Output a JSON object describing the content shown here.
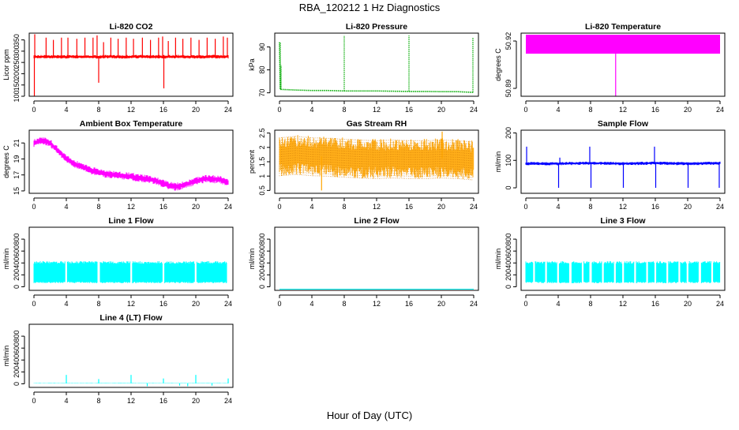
{
  "figure": {
    "title": "RBA_120212  1 Hz Diagnostics",
    "xlabel": "Hour of Day (UTC)"
  },
  "chart_data": [
    {
      "id": "co2",
      "type": "line",
      "title": "Li-820 CO2",
      "ylabel": "Licor ppm",
      "color": "#ff0000",
      "style": "spiky",
      "xlim": [
        0,
        24
      ],
      "xticks": [
        0,
        4,
        8,
        12,
        16,
        20,
        24
      ],
      "ylim": [
        100,
        380
      ],
      "yticks": [
        100,
        150,
        200,
        250,
        300,
        350
      ],
      "x": [
        0,
        1,
        2,
        3,
        4,
        5,
        6,
        7,
        8,
        9,
        10,
        11,
        12,
        13,
        14,
        15,
        16,
        17,
        18,
        19,
        20,
        21,
        22,
        23,
        24
      ],
      "y": [
        275,
        275,
        276,
        275,
        275,
        276,
        275,
        275,
        275,
        276,
        275,
        275,
        275,
        276,
        275,
        275,
        275,
        275,
        276,
        275,
        275,
        275,
        276,
        275,
        275
      ],
      "band": 8,
      "spikes": [
        {
          "x": 0.05,
          "y": 100
        },
        {
          "x": 0.1,
          "y": 375
        },
        {
          "x": 1.5,
          "y": 360
        },
        {
          "x": 2.4,
          "y": 350
        },
        {
          "x": 3.4,
          "y": 360
        },
        {
          "x": 4.2,
          "y": 360
        },
        {
          "x": 5.3,
          "y": 355
        },
        {
          "x": 6.3,
          "y": 360
        },
        {
          "x": 7.3,
          "y": 360
        },
        {
          "x": 7.8,
          "y": 370
        },
        {
          "x": 8.0,
          "y": 160
        },
        {
          "x": 8.6,
          "y": 340
        },
        {
          "x": 9.5,
          "y": 360
        },
        {
          "x": 10.4,
          "y": 355
        },
        {
          "x": 11.4,
          "y": 360
        },
        {
          "x": 12.3,
          "y": 355
        },
        {
          "x": 13.4,
          "y": 360
        },
        {
          "x": 14.4,
          "y": 350
        },
        {
          "x": 15.4,
          "y": 360
        },
        {
          "x": 15.9,
          "y": 365
        },
        {
          "x": 16.05,
          "y": 135
        },
        {
          "x": 16.6,
          "y": 345
        },
        {
          "x": 17.5,
          "y": 360
        },
        {
          "x": 18.4,
          "y": 355
        },
        {
          "x": 19.4,
          "y": 360
        },
        {
          "x": 20.4,
          "y": 350
        },
        {
          "x": 21.4,
          "y": 360
        },
        {
          "x": 22.4,
          "y": 355
        },
        {
          "x": 23.4,
          "y": 365
        },
        {
          "x": 23.9,
          "y": 360
        }
      ]
    },
    {
      "id": "pressure",
      "type": "line",
      "title": "Li-820 Pressure",
      "ylabel": "kPa",
      "color": "#00aa00",
      "style": "dotted",
      "xlim": [
        0,
        24
      ],
      "xticks": [
        0,
        4,
        8,
        12,
        16,
        20,
        24
      ],
      "ylim": [
        68.5,
        96
      ],
      "yticks": [
        70,
        80,
        90
      ],
      "x": [
        0,
        0.1,
        2,
        4,
        6,
        8,
        10,
        12,
        14,
        16,
        18,
        20,
        22,
        24
      ],
      "y": [
        92,
        71.5,
        71.2,
        71.0,
        71.0,
        70.8,
        70.8,
        70.8,
        70.7,
        70.6,
        70.6,
        70.5,
        70.5,
        70.2
      ],
      "spikes": [
        {
          "x": 0.1,
          "y": 92
        },
        {
          "x": 0.2,
          "y": 82
        },
        {
          "x": 8.0,
          "y": 95
        },
        {
          "x": 16.0,
          "y": 95
        },
        {
          "x": 23.9,
          "y": 94
        }
      ]
    },
    {
      "id": "temperature",
      "type": "area",
      "title": "Li-820 Temperature",
      "ylabel": "degrees C",
      "color": "#ff00ff",
      "style": "block",
      "xlim": [
        0,
        24
      ],
      "xticks": [
        0,
        4,
        8,
        12,
        16,
        20,
        24
      ],
      "ylim": [
        50.885,
        50.925
      ],
      "yticks": [
        50.89,
        50.92
      ],
      "x": [
        0,
        24
      ],
      "ymin": 50.912,
      "ymax": 50.924,
      "spikes": [
        {
          "x": 11.1,
          "y": 50.885
        }
      ]
    },
    {
      "id": "ambient",
      "type": "line",
      "title": "Ambient Box Temperature",
      "ylabel": "degrees C",
      "color": "#ff00ff",
      "style": "band",
      "xlim": [
        0,
        24
      ],
      "xticks": [
        0,
        4,
        8,
        12,
        16,
        20,
        24
      ],
      "ylim": [
        14.7,
        22.6
      ],
      "yticks": [
        15,
        17,
        19,
        21
      ],
      "x": [
        0,
        1,
        2,
        3,
        4,
        5,
        6,
        7,
        8,
        9,
        10,
        11,
        12,
        13,
        14,
        15,
        16,
        17,
        17.5,
        18,
        19,
        20,
        21,
        22,
        23,
        24
      ],
      "y": [
        21.0,
        21.3,
        21.0,
        20.0,
        19.0,
        18.4,
        18.0,
        17.6,
        17.3,
        17.1,
        17.0,
        16.9,
        16.8,
        16.6,
        16.5,
        16.3,
        15.9,
        15.6,
        15.5,
        15.6,
        15.9,
        16.2,
        16.5,
        16.5,
        16.4,
        16.0
      ],
      "band": 0.5
    },
    {
      "id": "rh",
      "type": "line",
      "title": "Gas Stream RH",
      "ylabel": "percent",
      "color": "#ffa500",
      "style": "dense",
      "xlim": [
        0,
        24
      ],
      "xticks": [
        0,
        4,
        8,
        12,
        16,
        20,
        24
      ],
      "ylim": [
        0.4,
        2.6
      ],
      "yticks": [
        0.5,
        1.0,
        1.5,
        2.0,
        2.5
      ],
      "x": [
        0,
        2,
        4,
        6,
        8,
        10,
        12,
        14,
        16,
        18,
        20,
        22,
        24
      ],
      "y": [
        1.7,
        1.75,
        1.7,
        1.68,
        1.65,
        1.62,
        1.6,
        1.62,
        1.6,
        1.6,
        1.62,
        1.6,
        1.55
      ],
      "band": 0.7,
      "spikes": [
        {
          "x": 5.2,
          "y": 0.5
        },
        {
          "x": 20.1,
          "y": 2.55
        }
      ]
    },
    {
      "id": "sample",
      "type": "line",
      "title": "Sample Flow",
      "ylabel": "ml/min",
      "color": "#0000ff",
      "style": "spiky",
      "xlim": [
        0,
        24
      ],
      "xticks": [
        0,
        4,
        8,
        12,
        16,
        20,
        24
      ],
      "ylim": [
        -20,
        210
      ],
      "yticks": [
        0,
        100,
        200
      ],
      "x": [
        0,
        4,
        8,
        12,
        16,
        20,
        24
      ],
      "y": [
        88,
        88,
        90,
        88,
        90,
        88,
        90
      ],
      "band": 6,
      "spikes": [
        {
          "x": 0.1,
          "y": 150
        },
        {
          "x": 4.05,
          "y": 0
        },
        {
          "x": 4.2,
          "y": 110
        },
        {
          "x": 7.9,
          "y": 150
        },
        {
          "x": 8.05,
          "y": 0
        },
        {
          "x": 12.05,
          "y": 0
        },
        {
          "x": 15.9,
          "y": 150
        },
        {
          "x": 16.05,
          "y": 0
        },
        {
          "x": 20.05,
          "y": 0
        },
        {
          "x": 23.9,
          "y": 0
        }
      ]
    },
    {
      "id": "line1",
      "type": "line",
      "title": "Line 1 Flow",
      "ylabel": "ml/min",
      "color": "#00ffff",
      "style": "block",
      "xlim": [
        0,
        24
      ],
      "xticks": [
        0,
        4,
        8,
        12,
        16,
        20,
        24
      ],
      "ylim": [
        -60,
        1000
      ],
      "yticks": [
        0,
        200,
        400,
        600,
        800
      ],
      "x": [
        0,
        24
      ],
      "ymin": 60,
      "ymax": 430,
      "gaps": [
        4.0,
        8.0,
        12.0,
        16.0,
        20.0,
        24.0
      ]
    },
    {
      "id": "line2",
      "type": "line",
      "title": "Line 2 Flow",
      "ylabel": "ml/min",
      "color": "#00ffff",
      "style": "flat",
      "xlim": [
        0,
        24
      ],
      "xticks": [
        0,
        4,
        8,
        12,
        16,
        20,
        24
      ],
      "ylim": [
        -60,
        1000
      ],
      "yticks": [
        0,
        200,
        400,
        600,
        800
      ],
      "x": [
        0,
        24
      ],
      "y": [
        -40,
        -40
      ]
    },
    {
      "id": "line3",
      "type": "line",
      "title": "Line 3 Flow",
      "ylabel": "ml/min",
      "color": "#00ffff",
      "style": "block",
      "xlim": [
        0,
        24
      ],
      "xticks": [
        0,
        4,
        8,
        12,
        16,
        20,
        24
      ],
      "ylim": [
        -60,
        1000
      ],
      "yticks": [
        0,
        200,
        400,
        600,
        800
      ],
      "x": [
        0,
        24
      ],
      "ymin": 60,
      "ymax": 430,
      "gaps": [
        1.0,
        2.5,
        4.0,
        5.5,
        7.0,
        8.0,
        9.5,
        11.0,
        12.0,
        13.5,
        15.0,
        16.0,
        17.5,
        19.0,
        20.0,
        21.5,
        23.0
      ]
    },
    {
      "id": "line4",
      "type": "line",
      "title": "Line 4 (LT) Flow",
      "ylabel": "ml/min",
      "color": "#00ffff",
      "style": "spiky",
      "xlim": [
        0,
        24
      ],
      "xticks": [
        0,
        4,
        8,
        12,
        16,
        20,
        24
      ],
      "ylim": [
        -60,
        1000
      ],
      "yticks": [
        0,
        200,
        400,
        600,
        800
      ],
      "x": [
        0,
        24
      ],
      "y": [
        10,
        10
      ],
      "band": 4,
      "spikes": [
        {
          "x": 4.0,
          "y": 150
        },
        {
          "x": 8.0,
          "y": 80
        },
        {
          "x": 12.0,
          "y": 150
        },
        {
          "x": 14.0,
          "y": -40
        },
        {
          "x": 16.0,
          "y": 90
        },
        {
          "x": 18.0,
          "y": -30
        },
        {
          "x": 19.0,
          "y": -40
        },
        {
          "x": 20.0,
          "y": 150
        },
        {
          "x": 22.0,
          "y": -30
        },
        {
          "x": 24.0,
          "y": 90
        }
      ]
    }
  ]
}
